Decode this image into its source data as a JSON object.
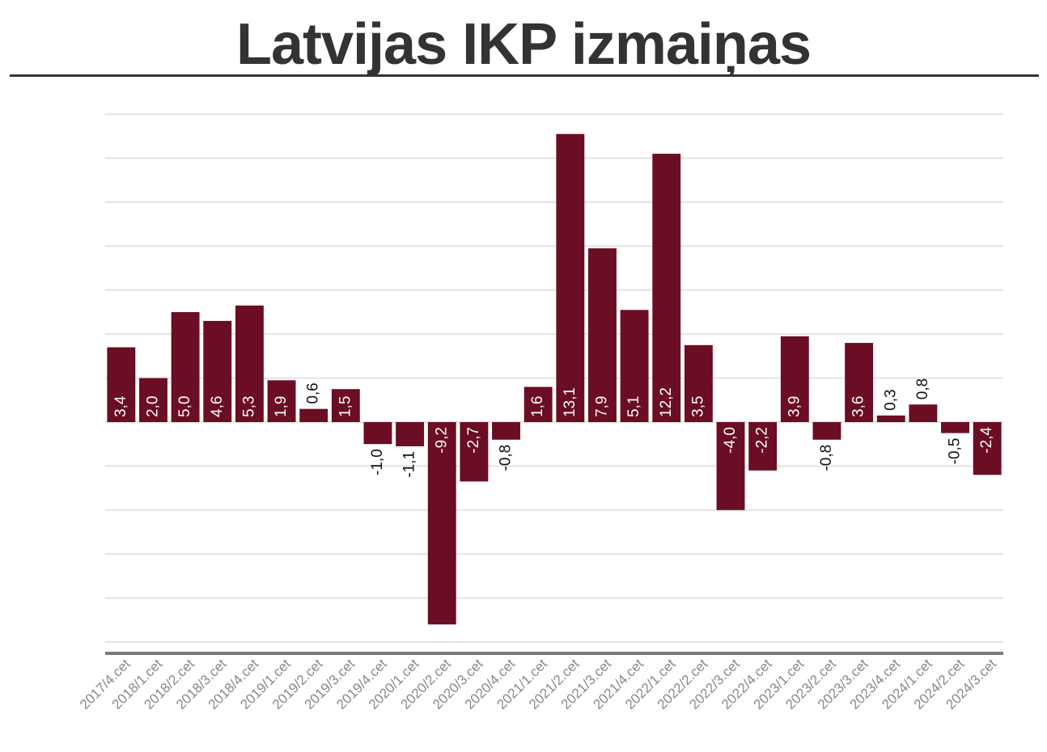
{
  "title": "Latvijas IKP izmaiņas",
  "colors": {
    "bar": "#6b0d23",
    "grid": "#e3e3e3",
    "axis": "#7a7a7a",
    "title": "#333333",
    "label_inside": "#ffffff",
    "label_outside": "#111111"
  },
  "chart_data": {
    "type": "bar",
    "title": "Latvijas IKP izmaiņas",
    "xlabel": "",
    "ylabel": "",
    "ylim": [
      -10,
      14
    ],
    "grid": true,
    "legend": "none",
    "categories": [
      "2017/4.cet",
      "2018/1.cet",
      "2018/2.cet",
      "2018/3.cet",
      "2018/4.cet",
      "2019/1.cet",
      "2019/2.cet",
      "2019/3.cet",
      "2019/4.cet",
      "2020/1.cet",
      "2020/2.cet",
      "2020/3.cet",
      "2020/4.cet",
      "2021/1.cet",
      "2021/2.cet",
      "2021/3.cet",
      "2021/4.cet",
      "2022/1.cet",
      "2022/2.cet",
      "2022/3.cet",
      "2022/4.cet",
      "2023/1.cet",
      "2023/2.cet",
      "2023/3.cet",
      "2023/4.cet",
      "2024/1.cet",
      "2024/2.cet",
      "2024/3.cet"
    ],
    "values": [
      3.4,
      2.0,
      5.0,
      4.6,
      5.3,
      1.9,
      0.6,
      1.5,
      -1.0,
      -1.1,
      -9.2,
      -2.7,
      -0.8,
      1.6,
      13.1,
      7.9,
      5.1,
      12.2,
      3.5,
      -4.0,
      -2.2,
      3.9,
      -0.8,
      3.6,
      0.3,
      0.8,
      -0.5,
      -2.4
    ],
    "value_labels": [
      "3,4",
      "2,0",
      "5,0",
      "4,6",
      "5,3",
      "1,9",
      "0,6",
      "1,5",
      "-1,0",
      "-1,1",
      "-9,2",
      "-2,7",
      "-0,8",
      "1,6",
      "13,1",
      "7,9",
      "5,1",
      "12,2",
      "3,5",
      "-4,0",
      "-2,2",
      "3,9",
      "-0,8",
      "3,6",
      "0,3",
      "0,8",
      "-0,5",
      "-2,4"
    ]
  }
}
